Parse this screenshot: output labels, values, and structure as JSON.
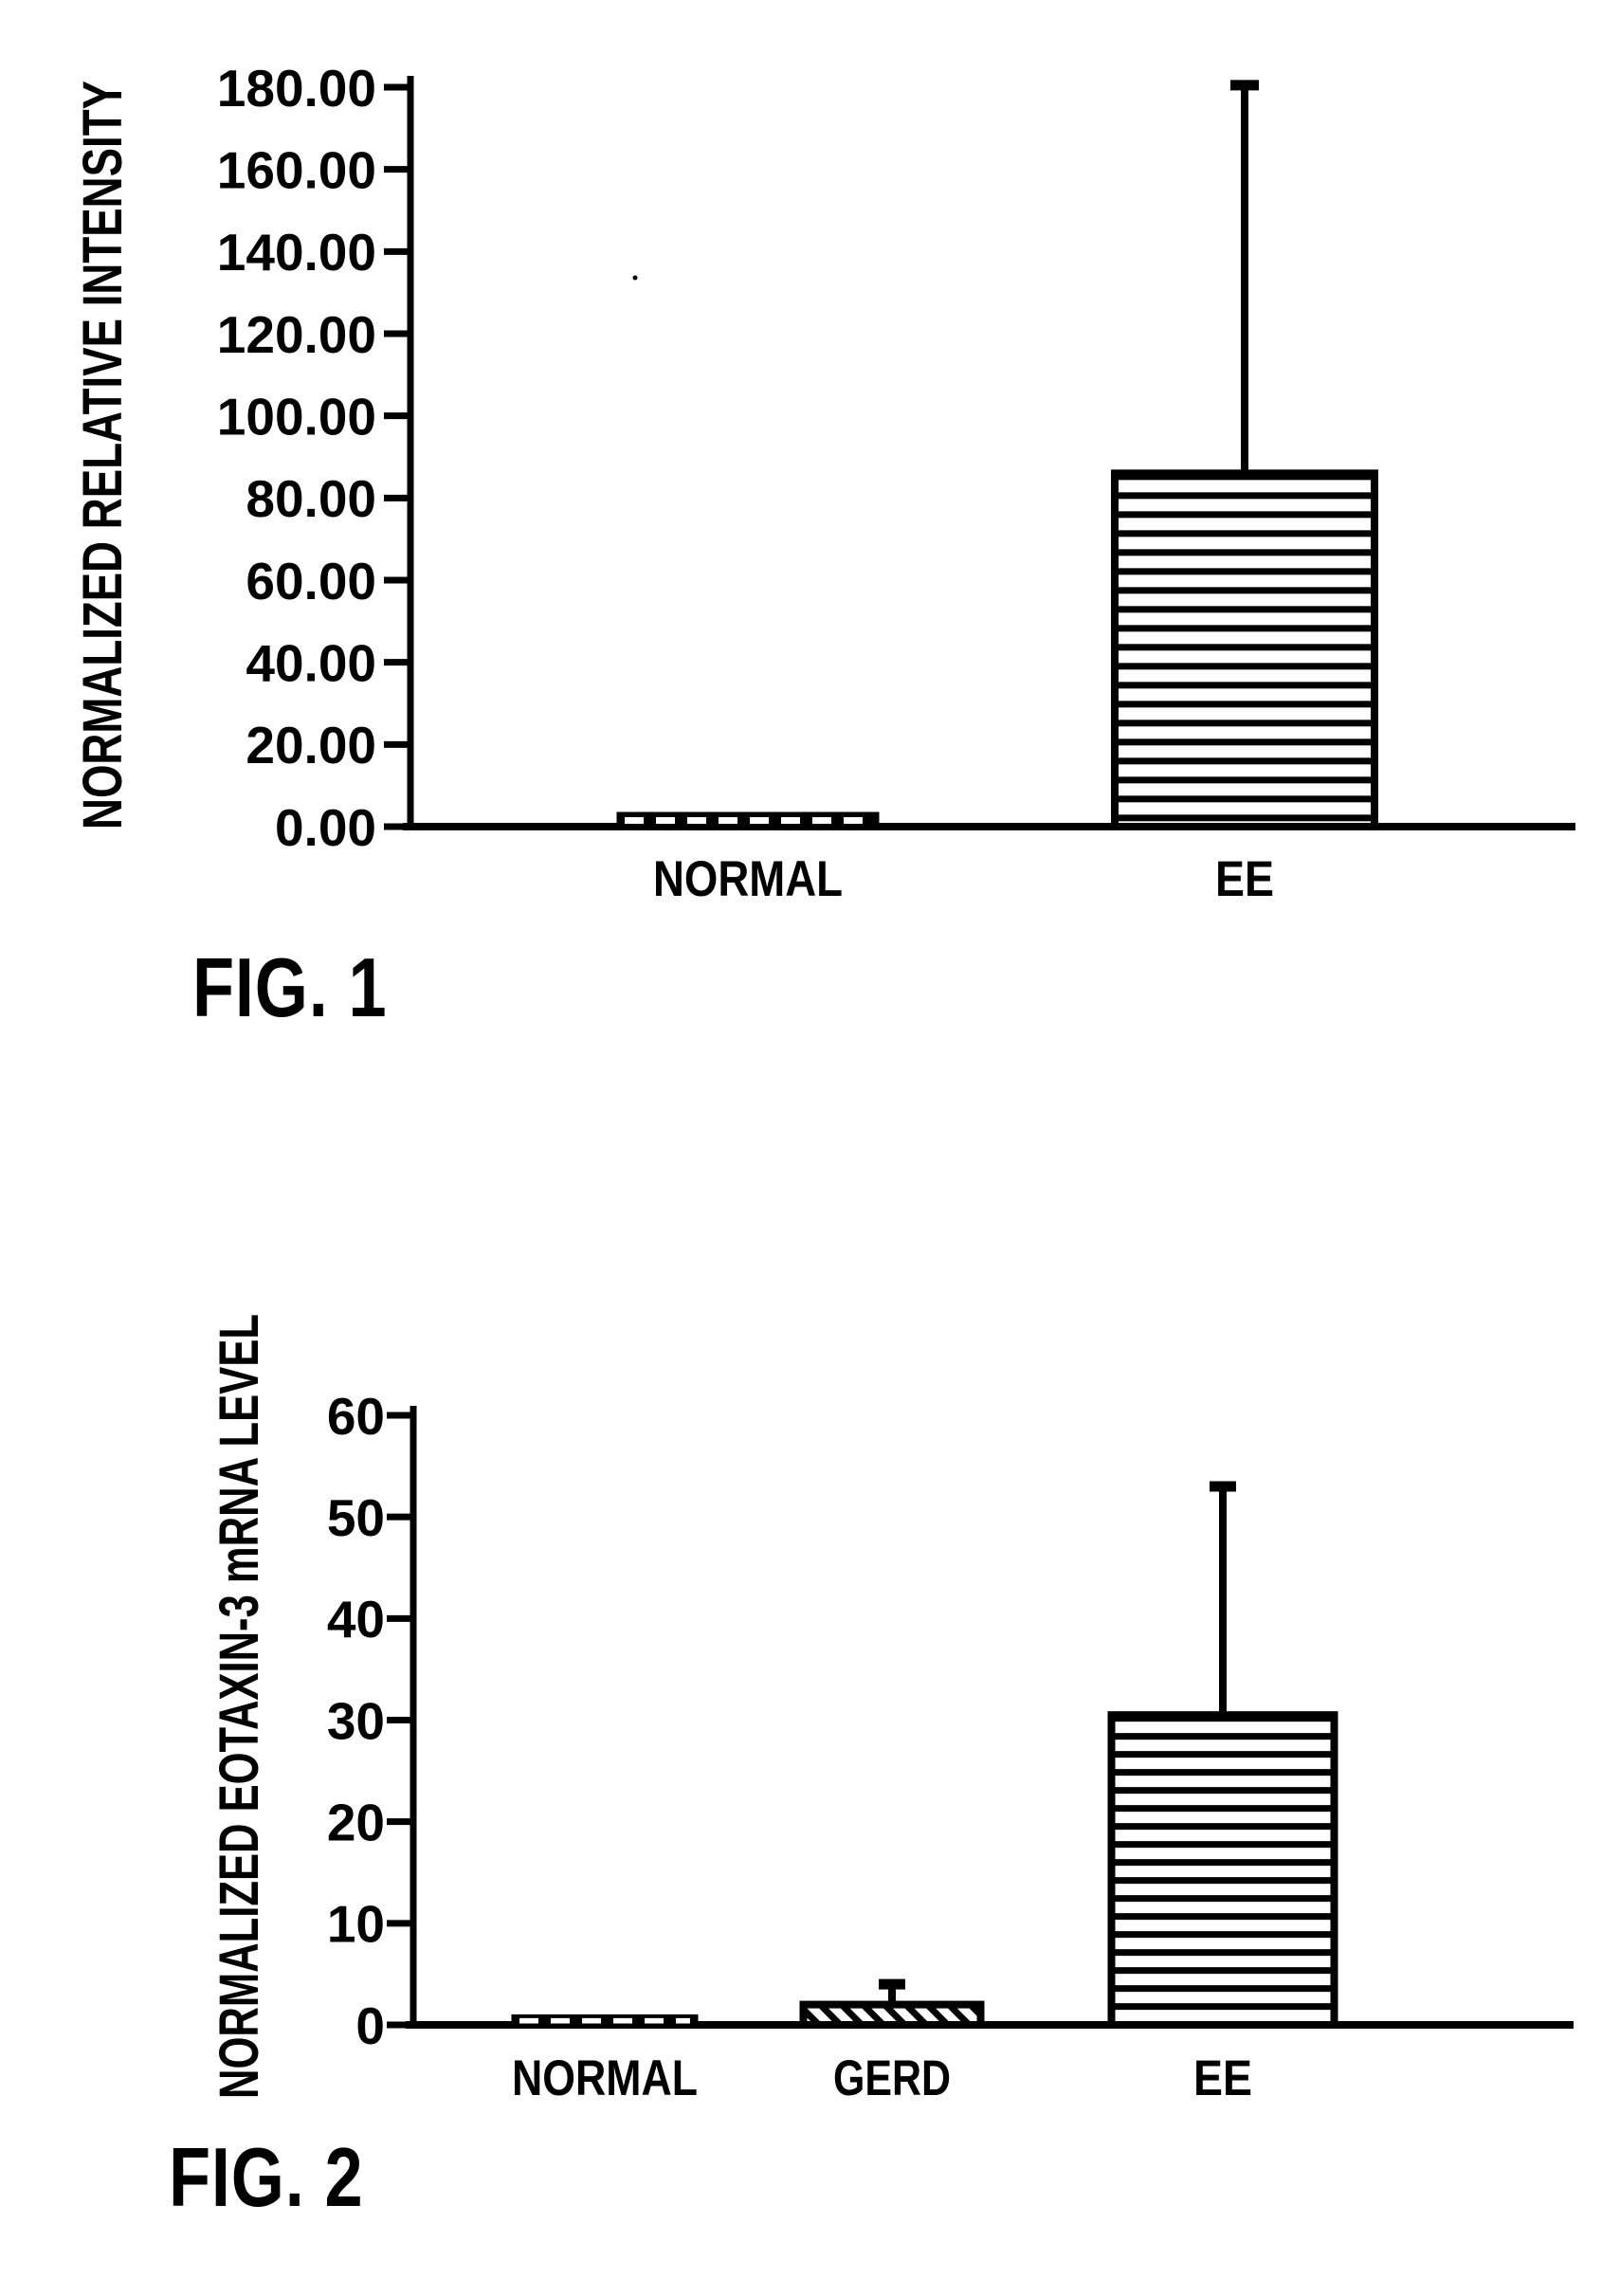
{
  "page": {
    "description": "Patent figure sheet with two bar charts",
    "ink_color": "#000000",
    "background_color": "#ffffff"
  },
  "chart_data": [
    {
      "type": "bar",
      "title": "FIG. 1",
      "ylabel": "NORMALIZED RELATIVE INTENSITY",
      "xlabel": "",
      "categories": [
        "NORMAL",
        "EE"
      ],
      "values": [
        3,
        86
      ],
      "error_top": [
        null,
        180.5
      ],
      "ylim": [
        0,
        180
      ],
      "ytick_step": 20,
      "ytick_labels": [
        "0.00",
        "20.00",
        "40.00",
        "60.00",
        "80.00",
        "100.00",
        "120.00",
        "140.00",
        "160.00",
        "180.00"
      ],
      "grid": false,
      "legend": "none",
      "bar_styles": [
        "solid-dash",
        "horizontal-stripes"
      ]
    },
    {
      "type": "bar",
      "title": "FIG. 2",
      "ylabel": "NORMALIZED EOTAXIN-3 mRNA LEVEL",
      "xlabel": "",
      "categories": [
        "NORMAL",
        "GERD",
        "EE"
      ],
      "values": [
        0.8,
        2,
        30.5
      ],
      "error_top": [
        null,
        4,
        53
      ],
      "ylim": [
        0,
        60
      ],
      "ytick_step": 10,
      "ytick_labels": [
        "0",
        "10",
        "20",
        "30",
        "40",
        "50",
        "60"
      ],
      "grid": false,
      "legend": "none",
      "bar_styles": [
        "solid-dash",
        "diagonal-hatch",
        "horizontal-stripes"
      ]
    }
  ]
}
